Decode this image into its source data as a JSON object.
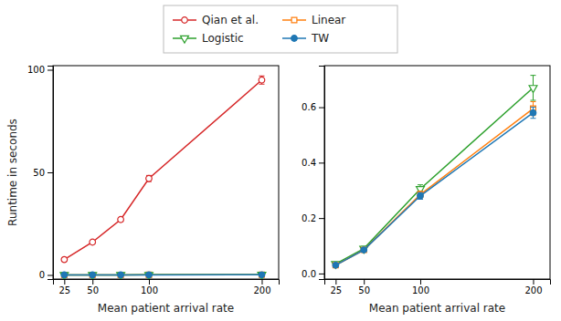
{
  "chart_data": [
    {
      "type": "line",
      "x_label": "Mean patient arrival rate",
      "y_label": "Runtime in seconds",
      "legend": "top",
      "x": [
        25,
        50,
        75,
        100,
        200
      ],
      "xlim": [
        15,
        215
      ],
      "xticks": [
        25,
        50,
        100,
        200
      ],
      "ylim": [
        -2,
        102
      ],
      "yticks": [
        0,
        50,
        100
      ],
      "series": [
        {
          "name": "Qian et al.",
          "color": "#d62728",
          "marker": "circle-open",
          "values": [
            7.5,
            16,
            27,
            47,
            95
          ],
          "errors": [
            0.5,
            0.8,
            1.0,
            1.5,
            2.0
          ]
        },
        {
          "name": "Linear",
          "color": "#ff7f0e",
          "marker": "square-open",
          "values": [
            0.025,
            0.035,
            0.045,
            0.06,
            0.09
          ],
          "errors": [
            0.003,
            0.004,
            0.004,
            0.005,
            0.007
          ]
        },
        {
          "name": "Logistic",
          "color": "#2ca02c",
          "marker": "triangle-down-open",
          "values": [
            0.03,
            0.04,
            0.05,
            0.07,
            0.1
          ],
          "errors": [
            0.005,
            0.005,
            0.005,
            0.008,
            0.01
          ]
        },
        {
          "name": "TW",
          "color": "#1f77b4",
          "marker": "circle",
          "values": [
            0.025,
            0.035,
            0.045,
            0.055,
            0.085
          ],
          "errors": [
            0.003,
            0.003,
            0.004,
            0.005,
            0.007
          ]
        }
      ]
    },
    {
      "type": "line",
      "x_label": "Mean patient arrival rate",
      "x": [
        25,
        50,
        100,
        200
      ],
      "xlim": [
        15,
        215
      ],
      "xticks": [
        25,
        50,
        100,
        200
      ],
      "ylim": [
        -0.02,
        0.75
      ],
      "yticks": [
        {
          "value": 0.0,
          "label": "0.0"
        },
        0.2,
        0.4,
        0.6
      ],
      "series": [
        {
          "name": "Logistic",
          "color": "#2ca02c",
          "marker": "triangle-down-open",
          "values": [
            0.035,
            0.09,
            0.305,
            0.67
          ],
          "errors": [
            0.003,
            0.008,
            0.015,
            0.045
          ]
        },
        {
          "name": "Linear",
          "color": "#ff7f0e",
          "marker": "square-open",
          "values": [
            0.03,
            0.085,
            0.285,
            0.595
          ],
          "errors": [
            0.003,
            0.007,
            0.012,
            0.025
          ]
        },
        {
          "name": "TW",
          "color": "#1f77b4",
          "marker": "circle",
          "values": [
            0.03,
            0.085,
            0.28,
            0.58
          ],
          "errors": [
            0.003,
            0.007,
            0.012,
            0.02
          ]
        }
      ]
    }
  ]
}
